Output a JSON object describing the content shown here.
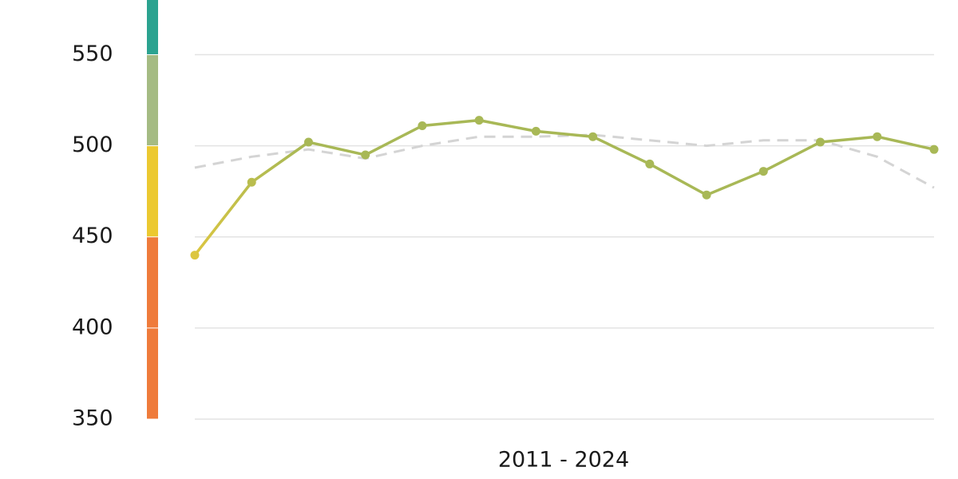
{
  "chart_data": {
    "type": "line",
    "x_label": "2011 - 2024",
    "categories": [
      null,
      null,
      null,
      null,
      null,
      null,
      null,
      null,
      null,
      null,
      null,
      null,
      null,
      null
    ],
    "series": [
      {
        "color": "#a8b856",
        "point_colors": [
          "#dcc640",
          "#b9bd4e",
          "#a8b856",
          "#a8b856",
          "#a8b856",
          "#a8b856",
          "#a8b856",
          "#a8b856",
          "#a8b856",
          "#a8b856",
          "#a8b856",
          "#a8b856",
          "#a8b856",
          "#a8b856"
        ],
        "values": [
          440,
          480,
          502,
          495,
          511,
          514,
          508,
          505,
          490,
          473,
          486,
          502,
          505,
          498
        ]
      },
      {
        "color": "#d4d4d4",
        "dashed": true,
        "values": [
          488,
          494,
          498,
          493,
          500,
          505,
          505,
          506,
          503,
          500,
          503,
          503,
          494,
          477
        ]
      }
    ],
    "bands": [
      {
        "from": 350,
        "to": 450,
        "color": "#ef7b3b"
      },
      {
        "from": 450,
        "to": 500,
        "color": "#ecc930"
      },
      {
        "from": 500,
        "to": 550,
        "color": "#a5bb83"
      },
      {
        "from": 550,
        "to": 580,
        "color": "#2ba390"
      }
    ],
    "ylim": [
      350,
      580
    ],
    "yticks": [
      350,
      400,
      450,
      500,
      550
    ],
    "grid": true
  }
}
